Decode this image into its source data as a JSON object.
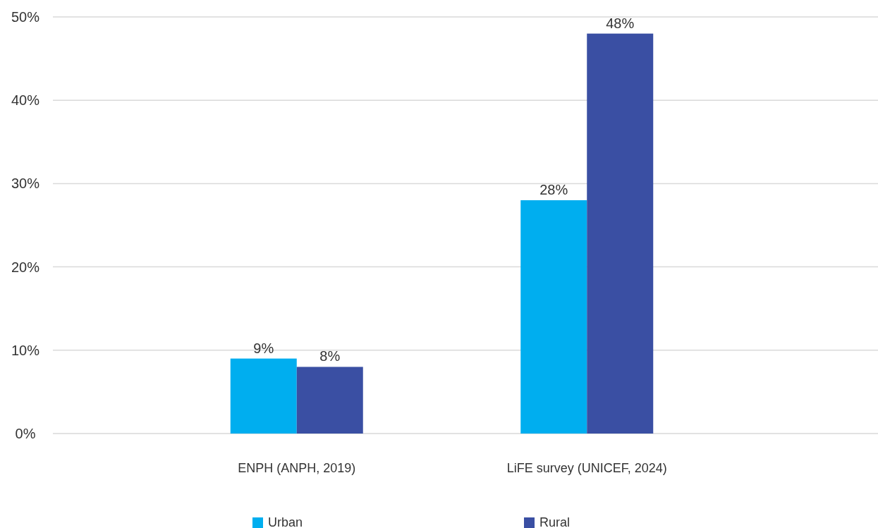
{
  "chart_data": {
    "type": "bar",
    "categories": [
      "ENPH (ANPH, 2019)",
      "LiFE survey (UNICEF, 2024)"
    ],
    "series": [
      {
        "name": "Urban",
        "color": "#00aeef",
        "values": [
          9,
          28
        ],
        "value_labels": [
          "9%",
          "28%"
        ]
      },
      {
        "name": "Rural",
        "color": "#3a4fa3",
        "values": [
          8,
          48
        ],
        "value_labels": [
          "8%",
          "48%"
        ]
      }
    ],
    "ylim": [
      0,
      50
    ],
    "yticks": [
      {
        "value": 0,
        "label": "0%"
      },
      {
        "value": 10,
        "label": "10%"
      },
      {
        "value": 20,
        "label": "20%"
      },
      {
        "value": 30,
        "label": "30%"
      },
      {
        "value": 40,
        "label": "40%"
      },
      {
        "value": 50,
        "label": "50%"
      }
    ],
    "grid": "y",
    "legend": "bottom"
  }
}
